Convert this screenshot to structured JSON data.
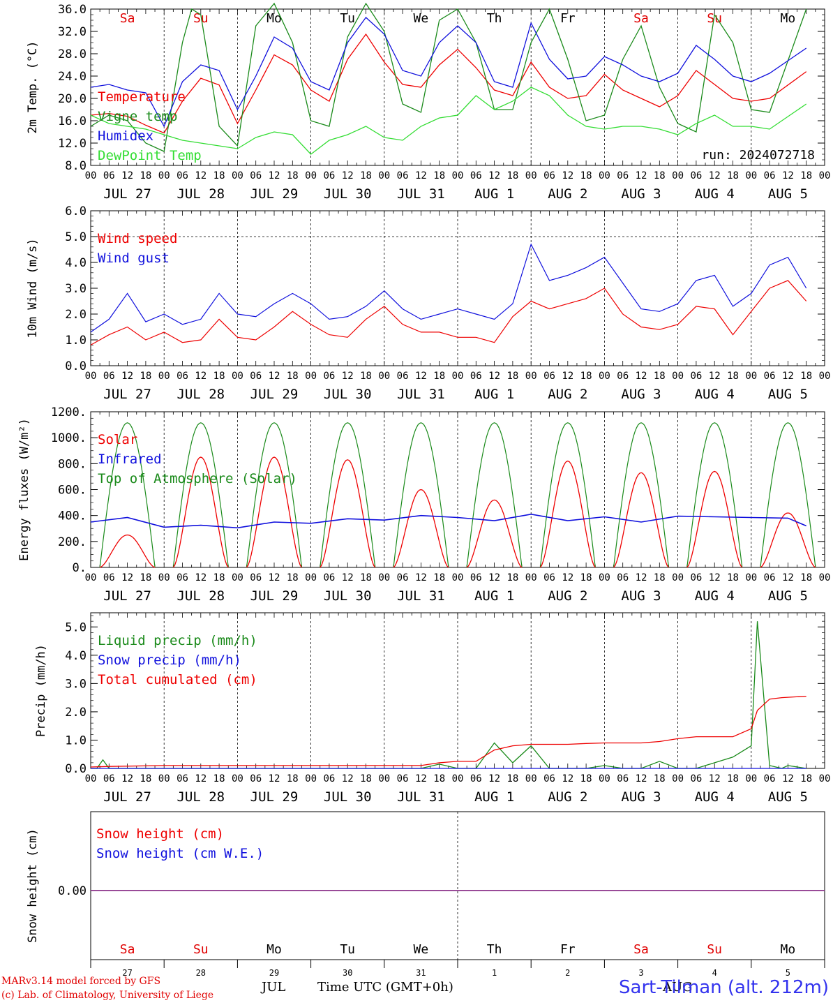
{
  "days": [
    "JUL 27",
    "JUL 28",
    "JUL 29",
    "JUL 30",
    "JUL 31",
    "AUG  1",
    "AUG  2",
    "AUG  3",
    "AUG  4",
    "AUG  5"
  ],
  "day_numbers": [
    "27",
    "28",
    "29",
    "30",
    "31",
    "1",
    "2",
    "3",
    "4",
    "5"
  ],
  "weekdays": [
    {
      "label": "Sa",
      "color": "#e00000"
    },
    {
      "label": "Su",
      "color": "#e00000"
    },
    {
      "label": "Mo",
      "color": "#000000"
    },
    {
      "label": "Tu",
      "color": "#000000"
    },
    {
      "label": "We",
      "color": "#000000"
    },
    {
      "label": "Th",
      "color": "#000000"
    },
    {
      "label": "Fr",
      "color": "#000000"
    },
    {
      "label": "Sa",
      "color": "#e00000"
    },
    {
      "label": "Su",
      "color": "#e00000"
    },
    {
      "label": "Mo",
      "color": "#000000"
    }
  ],
  "hour_ticks": [
    "00",
    "06",
    "12",
    "18"
  ],
  "month_label": "JUL",
  "month_label_2": "AUG",
  "xlabel": "Time UTC (GMT+0h)",
  "run_label": "run: 2024072718",
  "footer": {
    "model": "MARv3.14 model forced by GFS",
    "lab": "(c) Lab. of Climatology, University of Liege",
    "station": "Sart-Tilman (alt. 212m)"
  },
  "chart_data": [
    {
      "type": "line",
      "ylabel": "2m Temp. (°C)",
      "ylim": [
        8,
        36
      ],
      "yticks": [
        "8.0",
        "12.0",
        "16.0",
        "20.0",
        "24.0",
        "28.0",
        "32.0",
        "36.0"
      ],
      "series": [
        {
          "name": "Temperature",
          "color": "#ee0000",
          "x": [
            0,
            6,
            12,
            18,
            24,
            30,
            36,
            42,
            48,
            54,
            60,
            66,
            72,
            78,
            84,
            90,
            96,
            102,
            108,
            114,
            120,
            126,
            132,
            138,
            144,
            150,
            156,
            162,
            168,
            174,
            180,
            186,
            192,
            198,
            204,
            210,
            216,
            222,
            234
          ],
          "y": [
            17,
            17.3,
            16.8,
            15.2,
            13.8,
            19.5,
            23.6,
            22.4,
            15.5,
            21.5,
            27.8,
            26,
            21.5,
            19.5,
            27,
            31.5,
            26.5,
            22.5,
            22,
            26,
            28.8,
            25.5,
            21.5,
            20.5,
            26.5,
            22,
            20,
            20.5,
            24.3,
            21.5,
            20,
            18.5,
            20.5,
            25,
            22.5,
            20,
            19.5,
            20,
            24.8
          ]
        },
        {
          "name": "Vigne temp",
          "color": "#1a8a1a",
          "x": [
            0,
            6,
            12,
            18,
            24,
            30,
            33,
            36,
            42,
            48,
            54,
            60,
            66,
            72,
            78,
            84,
            90,
            96,
            102,
            108,
            114,
            120,
            126,
            132,
            138,
            144,
            150,
            156,
            162,
            168,
            174,
            180,
            186,
            192,
            198,
            204,
            210,
            216,
            222,
            234
          ],
          "y": [
            15,
            17,
            16,
            12,
            10.5,
            30,
            36,
            35,
            15,
            11.5,
            33,
            37,
            30,
            16,
            15,
            31,
            37,
            32,
            19,
            17.5,
            34,
            36,
            30,
            18,
            18,
            30,
            36,
            27,
            16,
            17,
            27,
            33,
            22,
            15.5,
            14,
            35,
            30,
            18,
            17.5,
            36
          ]
        },
        {
          "name": "Humidex",
          "color": "#1010dd",
          "x": [
            0,
            6,
            12,
            18,
            24,
            30,
            36,
            42,
            48,
            54,
            60,
            66,
            72,
            78,
            84,
            90,
            96,
            102,
            108,
            114,
            120,
            126,
            132,
            138,
            144,
            150,
            156,
            162,
            168,
            174,
            180,
            186,
            192,
            198,
            204,
            210,
            216,
            222,
            234
          ],
          "y": [
            22,
            22.5,
            21.5,
            21,
            15,
            23,
            26,
            25,
            18,
            24,
            31,
            29,
            23,
            21.5,
            30,
            34.5,
            31.5,
            25,
            24,
            30,
            33,
            30,
            23,
            22,
            33.5,
            27,
            23.5,
            24,
            27.5,
            26,
            24,
            23,
            24.5,
            29.5,
            27,
            24,
            23,
            24.5,
            29
          ]
        },
        {
          "name": "DewPoint Temp",
          "color": "#33dd33",
          "x": [
            0,
            6,
            12,
            18,
            24,
            30,
            36,
            42,
            48,
            54,
            60,
            66,
            72,
            78,
            84,
            90,
            96,
            102,
            108,
            114,
            120,
            126,
            132,
            138,
            144,
            150,
            156,
            162,
            168,
            174,
            180,
            186,
            192,
            198,
            204,
            210,
            216,
            222,
            234
          ],
          "y": [
            17,
            15.5,
            15,
            14.5,
            13.5,
            12.5,
            12,
            11.5,
            11,
            13,
            14,
            13.5,
            10,
            12.5,
            13.5,
            15,
            13,
            12.5,
            15,
            16.5,
            17,
            20.5,
            18,
            19.5,
            22,
            20.5,
            17,
            15,
            14.5,
            15,
            15,
            14.5,
            13.5,
            15.5,
            17,
            15,
            15,
            14.5,
            19
          ]
        }
      ]
    },
    {
      "type": "line",
      "ylabel": "10m Wind (m/s)",
      "ylim": [
        0,
        6
      ],
      "yticks": [
        "0.0",
        "1.0",
        "2.0",
        "3.0",
        "4.0",
        "5.0",
        "6.0"
      ],
      "reference_line": 5,
      "series": [
        {
          "name": "Wind speed",
          "color": "#ee0000",
          "x": [
            0,
            6,
            12,
            18,
            24,
            30,
            36,
            42,
            48,
            54,
            60,
            66,
            72,
            78,
            84,
            90,
            96,
            102,
            108,
            114,
            120,
            126,
            132,
            138,
            144,
            150,
            156,
            162,
            168,
            174,
            180,
            186,
            192,
            198,
            204,
            210,
            216,
            222,
            228,
            234
          ],
          "y": [
            0.8,
            1.2,
            1.5,
            1,
            1.3,
            0.9,
            1,
            1.8,
            1.1,
            1,
            1.5,
            2.1,
            1.6,
            1.2,
            1.1,
            1.8,
            2.3,
            1.6,
            1.3,
            1.3,
            1.1,
            1.1,
            0.9,
            1.9,
            2.5,
            2.2,
            2.4,
            2.6,
            3,
            2,
            1.5,
            1.4,
            1.6,
            2.3,
            2.2,
            1.2,
            2.1,
            3,
            3.3,
            2.5
          ]
        },
        {
          "name": "Wind gust",
          "color": "#1010dd",
          "x": [
            0,
            6,
            12,
            18,
            24,
            30,
            36,
            42,
            48,
            54,
            60,
            66,
            72,
            78,
            84,
            90,
            96,
            102,
            108,
            114,
            120,
            126,
            132,
            138,
            144,
            150,
            156,
            162,
            168,
            174,
            180,
            186,
            192,
            198,
            204,
            210,
            216,
            222,
            228,
            234
          ],
          "y": [
            1.3,
            1.8,
            2.8,
            1.7,
            2,
            1.6,
            1.8,
            2.8,
            2,
            1.9,
            2.4,
            2.8,
            2.4,
            1.8,
            1.9,
            2.3,
            2.9,
            2.2,
            1.8,
            2,
            2.2,
            2,
            1.8,
            2.4,
            4.7,
            3.3,
            3.5,
            3.8,
            4.2,
            3.2,
            2.2,
            2.1,
            2.4,
            3.3,
            3.5,
            2.3,
            2.8,
            3.9,
            4.2,
            3
          ]
        }
      ]
    },
    {
      "type": "line",
      "ylabel": "Energy fluxes (W/m²)",
      "ylim": [
        0,
        1200
      ],
      "yticks": [
        "0.",
        "200.",
        "400.",
        "600.",
        "800.",
        "1000.",
        "1200."
      ],
      "series": [
        {
          "name": "Solar",
          "color": "#ee0000",
          "peaks": [
            250,
            850,
            850,
            830,
            600,
            520,
            820,
            730,
            740,
            420
          ]
        },
        {
          "name": "Infrared",
          "color": "#1010dd",
          "x": [
            0,
            12,
            24,
            36,
            48,
            60,
            72,
            84,
            96,
            108,
            120,
            132,
            144,
            156,
            168,
            180,
            192,
            204,
            216,
            228,
            234
          ],
          "y": [
            350,
            385,
            310,
            325,
            305,
            350,
            340,
            375,
            365,
            400,
            385,
            360,
            410,
            360,
            390,
            350,
            395,
            390,
            385,
            380,
            320
          ]
        },
        {
          "name": "Top of Atmosphere (Solar)",
          "color": "#1a8a1a",
          "peak": 1115
        }
      ]
    },
    {
      "type": "line",
      "ylabel": "Precip (mm/h)",
      "ylim": [
        0,
        5.5
      ],
      "yticks": [
        "0.0",
        "1.0",
        "2.0",
        "3.0",
        "4.0",
        "5.0"
      ],
      "series": [
        {
          "name": "Liquid precip (mm/h)",
          "color": "#1a8a1a",
          "x": [
            0,
            2,
            4,
            6,
            12,
            24,
            96,
            108,
            114,
            120,
            126,
            132,
            138,
            144,
            150,
            156,
            162,
            168,
            174,
            180,
            186,
            192,
            198,
            204,
            210,
            216,
            218,
            222,
            226,
            228,
            234
          ],
          "y": [
            0,
            0,
            0.3,
            0,
            0,
            0,
            0,
            0,
            0.15,
            0,
            0,
            0.9,
            0.2,
            0.8,
            0,
            0,
            0,
            0.1,
            0,
            0,
            0.25,
            0,
            0,
            0.2,
            0.4,
            0.8,
            5.2,
            0.1,
            0,
            0.1,
            0
          ]
        },
        {
          "name": "Snow precip (mm/h)",
          "color": "#1010dd",
          "x": [
            0,
            234
          ],
          "y": [
            0,
            0
          ]
        },
        {
          "name": "Total cumulated (cm)",
          "color": "#ee0000",
          "x": [
            0,
            6,
            24,
            96,
            108,
            114,
            120,
            126,
            132,
            138,
            144,
            150,
            156,
            162,
            168,
            174,
            180,
            186,
            192,
            198,
            204,
            210,
            216,
            218,
            222,
            226,
            234
          ],
          "y": [
            0.05,
            0.07,
            0.1,
            0.1,
            0.1,
            0.2,
            0.25,
            0.25,
            0.65,
            0.8,
            0.85,
            0.85,
            0.85,
            0.88,
            0.9,
            0.9,
            0.9,
            0.95,
            1.05,
            1.12,
            1.12,
            1.12,
            1.4,
            2.05,
            2.45,
            2.5,
            2.55
          ]
        }
      ]
    },
    {
      "type": "line",
      "ylabel": "Snow height (cm)",
      "yticks": [
        "0.00"
      ],
      "series": [
        {
          "name": "Snow height (cm)",
          "color": "#ee0000",
          "x": [
            0,
            234
          ],
          "y": [
            0,
            0
          ]
        },
        {
          "name": "Snow height (cm W.E.)",
          "color": "#1010dd",
          "x": [
            0,
            234
          ],
          "y": [
            0,
            0
          ]
        }
      ]
    }
  ]
}
